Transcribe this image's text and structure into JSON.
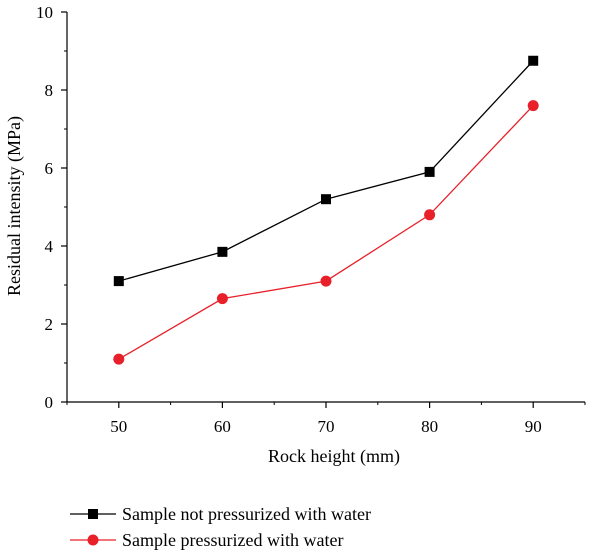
{
  "chart_data": {
    "type": "line",
    "xlabel": "Rock height (mm)",
    "ylabel": "Residual intensity  (MPa)",
    "x": [
      50,
      60,
      70,
      80,
      90
    ],
    "xlim": [
      45,
      95
    ],
    "ylim": [
      0,
      10
    ],
    "xticks": [
      "50",
      "60",
      "70",
      "80",
      "90"
    ],
    "yticks": [
      "0",
      "2",
      "4",
      "6",
      "8",
      "10"
    ],
    "grid": false,
    "legend_position": "bottom",
    "series": [
      {
        "name": "Sample not pressurized with water",
        "values": [
          3.1,
          3.85,
          5.2,
          5.9,
          8.75
        ],
        "color": "#000000",
        "marker": "square"
      },
      {
        "name": "Sample pressurized with water",
        "values": [
          1.1,
          2.65,
          3.1,
          4.8,
          7.6
        ],
        "color": "#e8202a",
        "marker": "circle"
      }
    ]
  }
}
